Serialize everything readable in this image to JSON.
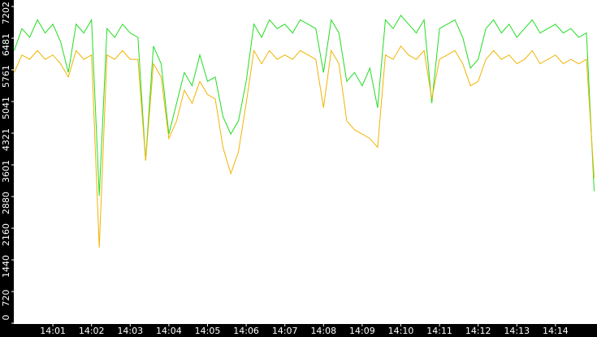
{
  "chart_data": {
    "type": "line",
    "categories": [
      null,
      null,
      null,
      null,
      null,
      "14:01",
      null,
      null,
      null,
      null,
      "14:02",
      null,
      null,
      null,
      null,
      "14:03",
      null,
      null,
      null,
      null,
      "14:04",
      null,
      null,
      null,
      null,
      "14:05",
      null,
      null,
      null,
      null,
      "14:06",
      null,
      null,
      null,
      null,
      "14:07",
      null,
      null,
      null,
      null,
      "14:08",
      null,
      null,
      null,
      null,
      "14:09",
      null,
      null,
      null,
      null,
      "14:10",
      null,
      null,
      null,
      null,
      "14:11",
      null,
      null,
      null,
      null,
      "14:12",
      null,
      null,
      null,
      null,
      "14:13",
      null,
      null,
      null,
      null,
      "14:14",
      null,
      null,
      null,
      null,
      null
    ],
    "series": [
      {
        "color": "#22dd22",
        "values": [
          6200,
          6700,
          6500,
          6900,
          6600,
          6800,
          6400,
          5700,
          6800,
          6600,
          6900,
          2900,
          6700,
          6500,
          6800,
          6600,
          6500,
          3700,
          6300,
          5900,
          4300,
          5000,
          5700,
          5400,
          6100,
          5500,
          5600,
          4700,
          4300,
          4600,
          5500,
          6800,
          6500,
          6900,
          6700,
          6800,
          6600,
          6900,
          6800,
          6700,
          5700,
          6900,
          6600,
          5500,
          5700,
          5400,
          5800,
          4900,
          6900,
          6700,
          7000,
          6800,
          6600,
          6900,
          5000,
          6700,
          6800,
          6900,
          6500,
          5800,
          6000,
          6700,
          6900,
          6600,
          6800,
          6500,
          6700,
          6900,
          6600,
          6700,
          6800,
          6600,
          6700,
          6500,
          6600,
          3000
        ]
      },
      {
        "color": "#f0b400",
        "values": [
          5700,
          6100,
          6000,
          6200,
          6000,
          6100,
          5900,
          5600,
          6200,
          6000,
          6100,
          1720,
          6100,
          6000,
          6200,
          6000,
          6000,
          3700,
          5900,
          5600,
          4200,
          4600,
          5300,
          5000,
          5500,
          5200,
          5100,
          4000,
          3400,
          3900,
          5000,
          6200,
          5900,
          6200,
          6000,
          6100,
          6000,
          6200,
          6100,
          6000,
          4900,
          6200,
          5900,
          4600,
          4400,
          4300,
          4200,
          4000,
          6100,
          6000,
          6300,
          6100,
          6000,
          6200,
          5100,
          6000,
          6100,
          6200,
          5900,
          5400,
          5500,
          6000,
          6200,
          6000,
          6100,
          5900,
          6000,
          6200,
          5900,
          6000,
          6100,
          5900,
          6000,
          5900,
          6000,
          3300
        ]
      }
    ],
    "ylim": [
      0,
      7202
    ],
    "yticks": [
      0,
      720,
      1440,
      2160,
      2880,
      3601,
      4321,
      5041,
      5761,
      6481,
      7202
    ]
  }
}
